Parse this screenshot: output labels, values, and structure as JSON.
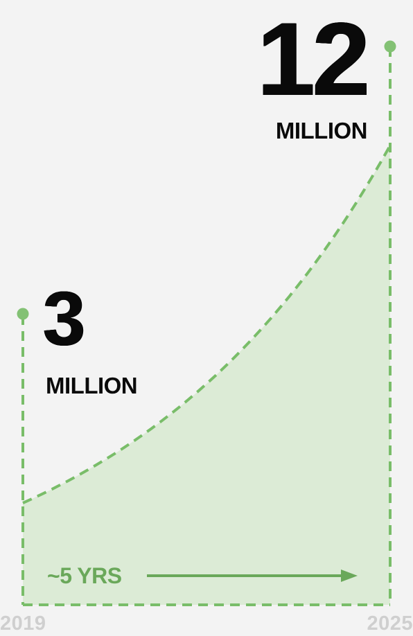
{
  "chart_data": {
    "type": "area",
    "x": [
      "2019",
      "2025"
    ],
    "values": [
      3,
      12
    ],
    "x_tick_labels": [
      "2019",
      "2025"
    ],
    "point_labels": [
      {
        "x": "2019",
        "value": "3",
        "unit": "MILLION"
      },
      {
        "x": "2025",
        "value": "12",
        "unit": "MILLION"
      }
    ],
    "annotation": "~5 YRS",
    "grid": false,
    "legend": "none",
    "colors": {
      "background": "#f3f3f3",
      "fill": "#dcebd6",
      "line": "#79bd69",
      "arrow": "#6aa85a",
      "text": "#0a0a0a",
      "tick": "#cfcfcf"
    }
  }
}
